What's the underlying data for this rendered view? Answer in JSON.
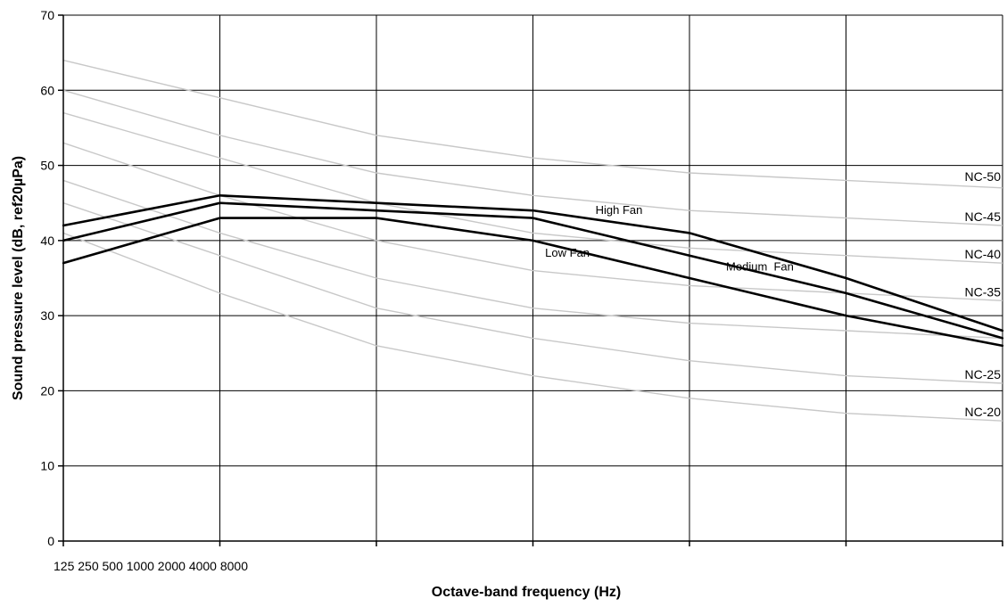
{
  "chart_data": {
    "type": "line",
    "xlabel": "Octave-band frequency (Hz)",
    "ylabel": "Sound pressure level (dB, ref20µPa)",
    "x_category_text": "125 250 500 1000 2000 4000 8000",
    "categories": [
      "125",
      "250",
      "500",
      "1000",
      "2000",
      "4000",
      "8000"
    ],
    "ylim": [
      0,
      70
    ],
    "yticks": [
      0,
      10,
      20,
      30,
      40,
      50,
      60,
      70
    ],
    "grid": true,
    "colors": {
      "fan": "#000000",
      "nc": "#c8c8c8",
      "grid": "#000000"
    },
    "series": [
      {
        "name": "High Fan",
        "values": [
          42,
          46,
          45,
          44,
          41,
          35,
          28
        ]
      },
      {
        "name": "Medium  Fan",
        "values": [
          40,
          45,
          44,
          43,
          38,
          33,
          27
        ]
      },
      {
        "name": "Low Fan",
        "values": [
          37,
          43,
          43,
          40,
          35,
          30,
          26
        ]
      }
    ],
    "nc_curves": [
      {
        "name": "NC-50",
        "values": [
          64,
          59,
          54,
          51,
          49,
          48,
          47
        ]
      },
      {
        "name": "NC-45",
        "values": [
          60,
          54,
          49,
          46,
          44,
          43,
          42
        ]
      },
      {
        "name": "NC-40",
        "values": [
          57,
          51,
          45,
          41,
          39,
          38,
          37
        ]
      },
      {
        "name": "NC-35",
        "values": [
          53,
          46,
          40,
          36,
          34,
          33,
          32
        ]
      },
      {
        "name": "",
        "values": [
          48,
          41,
          35,
          31,
          29,
          28,
          27
        ]
      },
      {
        "name": "NC-25",
        "values": [
          45,
          38,
          31,
          27,
          24,
          22,
          21
        ]
      },
      {
        "name": "NC-20",
        "values": [
          41,
          33,
          26,
          22,
          19,
          17,
          16
        ]
      }
    ]
  }
}
